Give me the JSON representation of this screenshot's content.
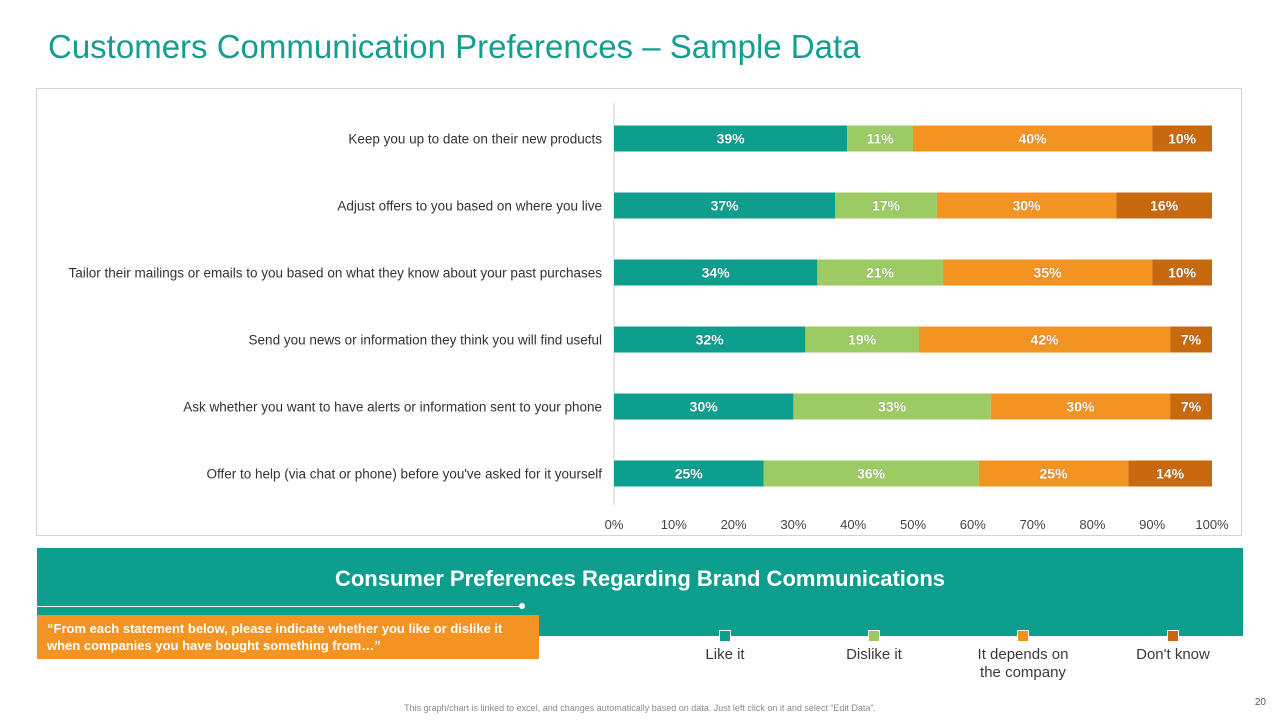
{
  "slide": {
    "title": "Customers Communication Preferences – Sample Data",
    "banner_title": "Consumer Preferences Regarding Brand Communications",
    "quote": "“From each statement below, please indicate whether you like or dislike it when companies you have bought something from…”",
    "footnote": "This graph/chart is linked to excel, and changes automatically based on data. Just left click on it and select “Edit Data”.",
    "page_number": "20"
  },
  "chart_data": {
    "type": "bar",
    "orientation": "horizontal",
    "stacked": "100%",
    "categories": [
      "Keep you up to date on their new products",
      "Adjust offers to you based on where you live",
      "Tailor their mailings or emails to you based on what they know about your past purchases",
      "Send you news or information they think you will find useful",
      "Ask whether you want to have alerts or information sent to your phone",
      "Offer to help (via chat or phone) before you've asked for it yourself"
    ],
    "series": [
      {
        "name": "Like it",
        "color": "#0e9e8d",
        "values": [
          39,
          37,
          34,
          32,
          30,
          25
        ]
      },
      {
        "name": "Dislike it",
        "color": "#9ccb64",
        "values": [
          11,
          17,
          21,
          19,
          33,
          36
        ]
      },
      {
        "name": "It depends on the company",
        "color": "#f39321",
        "values": [
          40,
          30,
          35,
          42,
          30,
          25
        ]
      },
      {
        "name": "Don't know",
        "color": "#c9690f",
        "values": [
          10,
          16,
          10,
          7,
          7,
          14
        ]
      }
    ],
    "xlim": [
      0,
      100
    ],
    "xticks": [
      "0%",
      "10%",
      "20%",
      "30%",
      "40%",
      "50%",
      "60%",
      "70%",
      "80%",
      "90%",
      "100%"
    ],
    "legend_position": "bottom",
    "grid": false
  },
  "legend_labels": [
    "Like it",
    "Dislike it",
    "It depends on\nthe company",
    "Don't know"
  ]
}
